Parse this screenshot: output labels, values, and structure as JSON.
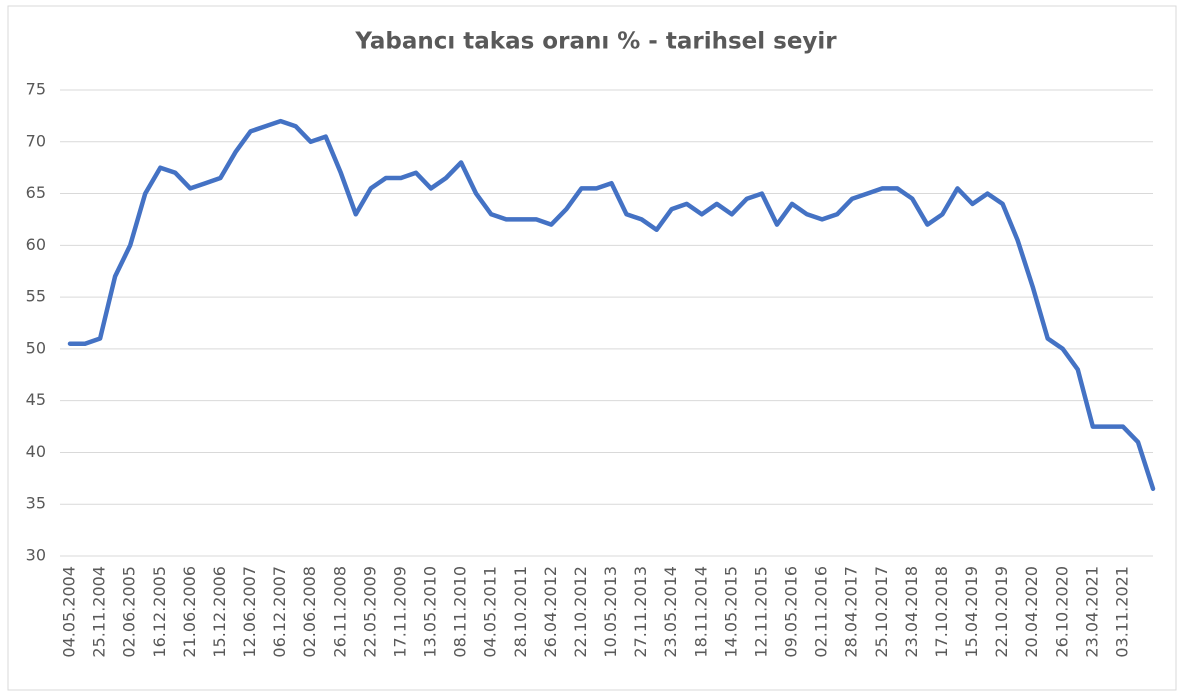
{
  "chart_data": {
    "type": "line",
    "title": "Yabancı takas oranı % - tarihsel seyir",
    "categories": [
      "04.05.2004",
      null,
      "25.11.2004",
      null,
      "02.06.2005",
      null,
      "16.12.2005",
      null,
      "21.06.2006",
      null,
      "15.12.2006",
      null,
      "12.06.2007",
      null,
      "06.12.2007",
      null,
      "02.06.2008",
      null,
      "26.11.2008",
      null,
      "22.05.2009",
      null,
      "17.11.2009",
      null,
      "13.05.2010",
      null,
      "08.11.2010",
      null,
      "04.05.2011",
      null,
      "28.10.2011",
      null,
      "26.04.2012",
      null,
      "22.10.2012",
      null,
      "10.05.2013",
      null,
      "27.11.2013",
      null,
      "23.05.2014",
      null,
      "18.11.2014",
      null,
      "14.05.2015",
      null,
      "12.11.2015",
      null,
      "09.05.2016",
      null,
      "02.11.2016",
      null,
      "28.04.2017",
      null,
      "25.10.2017",
      null,
      "23.04.2018",
      null,
      "17.10.2018",
      null,
      "15.04.2019",
      null,
      "22.10.2019",
      null,
      "20.04.2020",
      null,
      "26.10.2020",
      null,
      "23.04.2021",
      null,
      "03.11.2021",
      null,
      null
    ],
    "series": [
      {
        "color": "#4472c4",
        "values": [
          50.5,
          50.5,
          51,
          57,
          60,
          65,
          67.5,
          67,
          65.5,
          66,
          66.5,
          69,
          71,
          71.5,
          72,
          71.5,
          70,
          70.5,
          67,
          63,
          65.5,
          66.5,
          66.5,
          67,
          65.5,
          66.5,
          68,
          65,
          63,
          62.5,
          62.5,
          62.5,
          62,
          63.5,
          65.5,
          65.5,
          66,
          63,
          62.5,
          61.5,
          63.5,
          64,
          63,
          64,
          63,
          64.5,
          65,
          62,
          64,
          63,
          62.5,
          63,
          64.5,
          65,
          65.5,
          65.5,
          64.5,
          62,
          63,
          65.5,
          64,
          65,
          64,
          60.5,
          56,
          51,
          50,
          48,
          42.5,
          42.5,
          42.5,
          41,
          36.5
        ]
      }
    ],
    "ylim": [
      30,
      75
    ],
    "yticks": [
      30,
      35,
      40,
      45,
      50,
      55,
      60,
      65,
      70,
      75
    ],
    "grid": true
  }
}
